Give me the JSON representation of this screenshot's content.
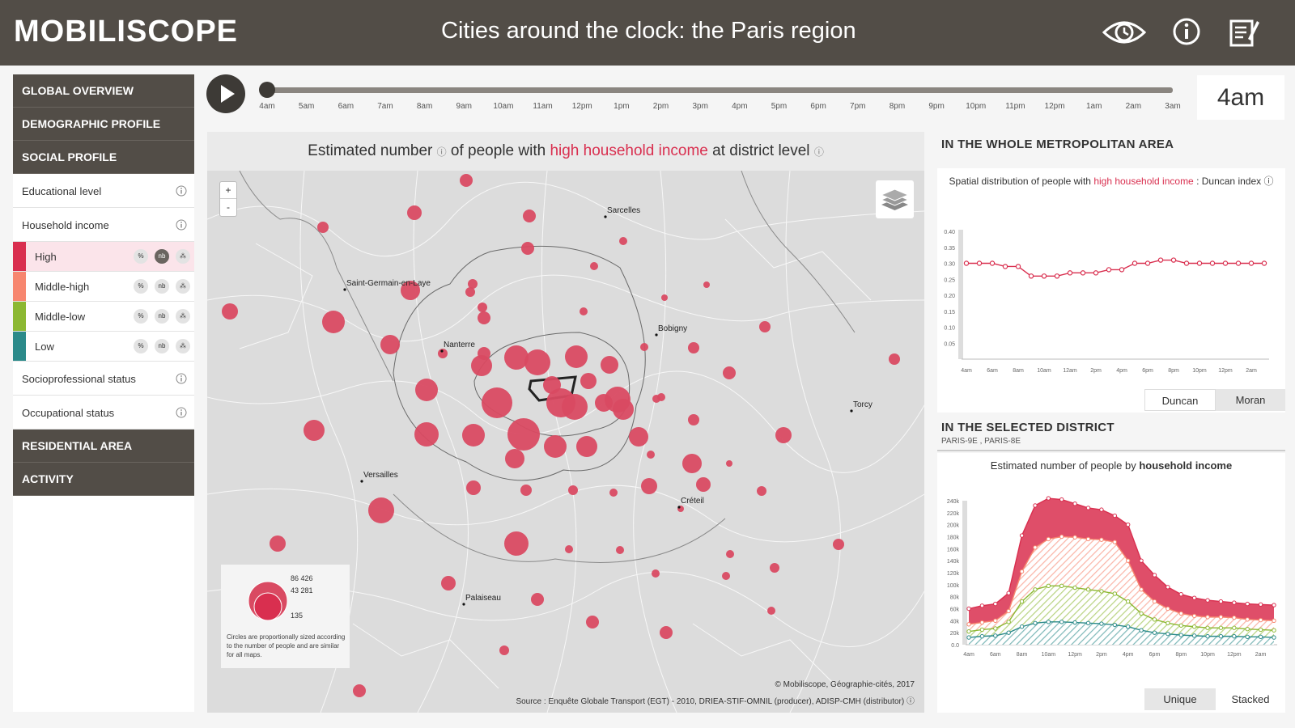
{
  "header": {
    "logo": "MOBILISCOPE",
    "subtitle": "Cities around the clock: the Paris region",
    "icons": [
      "eye-icon",
      "info-icon",
      "notepad-icon"
    ]
  },
  "sidebar": {
    "sections_top": [
      "GLOBAL OVERVIEW",
      "DEMOGRAPHIC PROFILE",
      "SOCIAL PROFILE"
    ],
    "social_items": [
      {
        "label": "Educational level"
      },
      {
        "label": "Household income"
      }
    ],
    "income_levels": [
      {
        "label": "High",
        "color": "#d92f4f",
        "active": true
      },
      {
        "label": "Middle-high",
        "color": "#f7866f"
      },
      {
        "label": "Middle-low",
        "color": "#8cb832"
      },
      {
        "label": "Low",
        "color": "#2b8a8a"
      }
    ],
    "mode_buttons": [
      "%",
      "nb",
      "⁂"
    ],
    "social_items_after": [
      {
        "label": "Socioprofessional status"
      },
      {
        "label": "Occupational status"
      }
    ],
    "sections_bottom": [
      "RESIDENTIAL AREA",
      "ACTIVITY"
    ]
  },
  "timeline": {
    "hours": [
      "4am",
      "5am",
      "6am",
      "7am",
      "8am",
      "9am",
      "10am",
      "11am",
      "12pm",
      "1pm",
      "2pm",
      "3pm",
      "4pm",
      "5pm",
      "6pm",
      "7pm",
      "8pm",
      "9pm",
      "10pm",
      "11pm",
      "12pm",
      "1am",
      "2am",
      "3am"
    ],
    "current": "4am"
  },
  "map": {
    "title_pre": "Estimated number",
    "title_mid": "of people with",
    "title_hl": "high household income",
    "title_post": "at district level",
    "zoom_in": "+",
    "zoom_out": "-",
    "cities": [
      "Sarcelles",
      "Saint-Germain-en-Laye",
      "Bobigny",
      "Nanterre",
      "Torcy",
      "Versailles",
      "Créteil",
      "Palaiseau"
    ],
    "legend_values": [
      "86 426",
      "43 281",
      "135"
    ],
    "legend_note": "Circles are proportionally sized according to the number of people and are similar for all maps.",
    "attribution": "© Mobiliscope, Géographie-cités, 2017",
    "source": "Source : Enquête Globale Transport (EGT) - 2010, DRIEA-STIF-OMNIL (producer), ADISP-CMH (distributor) ⓘ",
    "circle_color": "#d94a62"
  },
  "right": {
    "metro_head": "IN THE WHOLE METROPOLITAN AREA",
    "duncan_title_pre": "Spatial distribution of people with",
    "duncan_title_hl": "high household income",
    "duncan_title_post": ": Duncan index ⓘ",
    "duncan_toggle": [
      "Duncan",
      "Moran"
    ],
    "district_head": "IN THE SELECTED DISTRICT",
    "district_names": "PARIS-9E , PARIS-8E",
    "stack_title_pre": "Estimated number of people by",
    "stack_title_b": "household income",
    "stack_toggle": [
      "Unique",
      "Stacked"
    ]
  },
  "chart_data": [
    {
      "type": "line",
      "title": "Spatial distribution of people with high household income : Duncan index",
      "x": [
        "4am",
        "5am",
        "6am",
        "7am",
        "8am",
        "9am",
        "10am",
        "11am",
        "12pm",
        "1pm",
        "2pm",
        "3pm",
        "4pm",
        "5pm",
        "6pm",
        "7pm",
        "8pm",
        "9pm",
        "10pm",
        "11pm",
        "12pm",
        "1am",
        "2am",
        "3am"
      ],
      "x_tick_labels": [
        "4am",
        "6am",
        "8am",
        "10am",
        "12am",
        "2pm",
        "4pm",
        "6pm",
        "8pm",
        "10pm",
        "12pm",
        "2am"
      ],
      "ylim": [
        0,
        0.4
      ],
      "y_tick_labels": [
        "0.40",
        "0.35",
        "0.30",
        "0.25",
        "0.20",
        "0.15",
        "0.10",
        "0.05"
      ],
      "series": [
        {
          "color": "#d92f4f",
          "values": [
            0.3,
            0.3,
            0.3,
            0.29,
            0.29,
            0.26,
            0.26,
            0.26,
            0.27,
            0.27,
            0.27,
            0.28,
            0.28,
            0.3,
            0.3,
            0.31,
            0.31,
            0.3,
            0.3,
            0.3,
            0.3,
            0.3,
            0.3,
            0.3
          ]
        }
      ]
    },
    {
      "type": "area",
      "title": "Estimated number of people by household income",
      "x": [
        "4am",
        "5am",
        "6am",
        "7am",
        "8am",
        "9am",
        "10am",
        "11am",
        "12pm",
        "1pm",
        "2pm",
        "3pm",
        "4pm",
        "5pm",
        "6pm",
        "7pm",
        "8pm",
        "9pm",
        "10pm",
        "11pm",
        "12pm",
        "1am",
        "2am",
        "3am"
      ],
      "x_tick_labels": [
        "4am",
        "6am",
        "8am",
        "10am",
        "12pm",
        "2pm",
        "4pm",
        "6pm",
        "8pm",
        "10pm",
        "12pm",
        "2am"
      ],
      "ylim": [
        0,
        240000
      ],
      "y_tick_labels": [
        "240k",
        "220k",
        "200k",
        "180k",
        "160k",
        "140k",
        "120k",
        "100k",
        "80k",
        "60k",
        "40k",
        "20k",
        "0.0"
      ],
      "series": [
        {
          "name": "Low",
          "color": "#2b8a8a",
          "values": [
            12000,
            14000,
            15000,
            20000,
            30000,
            36000,
            38000,
            38000,
            37000,
            36000,
            35000,
            33000,
            30000,
            24000,
            20000,
            18000,
            16000,
            15000,
            14000,
            14000,
            14000,
            13000,
            13000,
            12000
          ]
        },
        {
          "name": "Middle-low",
          "color": "#8cb832",
          "values": [
            10000,
            11000,
            12000,
            18000,
            42000,
            56000,
            60000,
            60000,
            58000,
            56000,
            54000,
            52000,
            42000,
            28000,
            22000,
            18000,
            16000,
            15000,
            14000,
            14000,
            14000,
            13000,
            12000,
            12000
          ]
        },
        {
          "name": "Middle-high",
          "color": "#f7866f",
          "values": [
            12000,
            12000,
            13000,
            18000,
            50000,
            70000,
            78000,
            82000,
            84000,
            84000,
            86000,
            86000,
            68000,
            40000,
            30000,
            24000,
            20000,
            18000,
            18000,
            18000,
            17000,
            16000,
            16000,
            16000
          ]
        },
        {
          "name": "High",
          "color": "#d92f4f",
          "values": [
            26000,
            28000,
            28000,
            30000,
            60000,
            70000,
            68000,
            62000,
            56000,
            52000,
            50000,
            44000,
            60000,
            48000,
            44000,
            36000,
            32000,
            30000,
            28000,
            26000,
            25000,
            26000,
            26000,
            26000
          ]
        }
      ]
    }
  ]
}
